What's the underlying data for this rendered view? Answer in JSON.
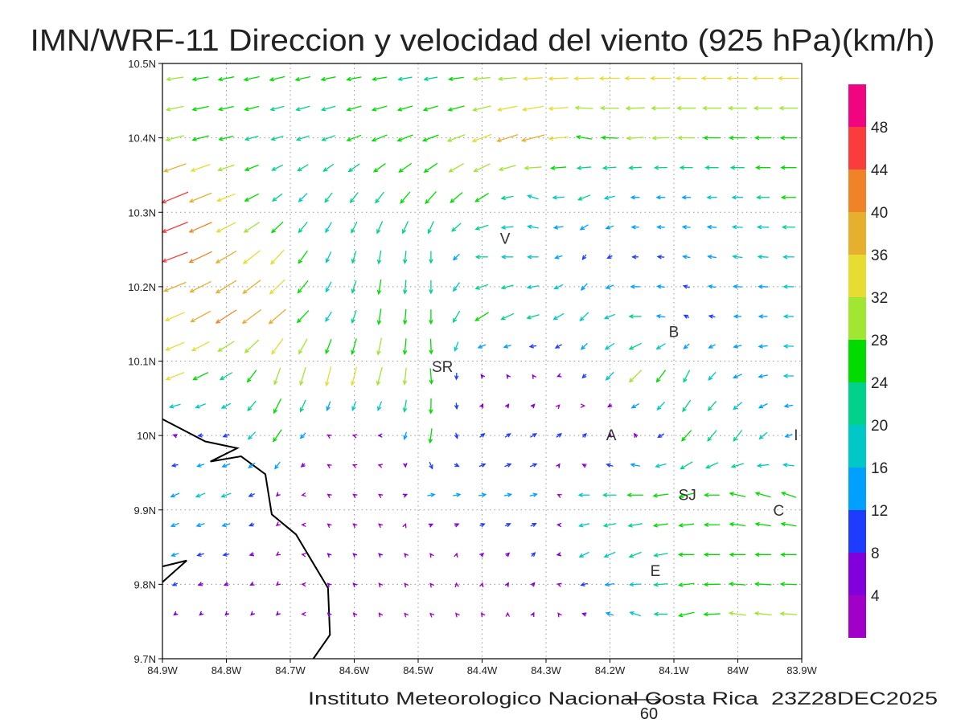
{
  "title": "IMN/WRF-11 Direccion y velocidad del viento (925 hPa)(km/h)",
  "footer": "Instituto Meteorologico Nacional Costa Rica  23Z28DEC2025",
  "reference_vector": {
    "label": "60",
    "value": 60
  },
  "chart_data": {
    "type": "vector-field",
    "units": "km/h",
    "level": "925 hPa",
    "xlim": [
      -84.9,
      -83.9
    ],
    "ylim": [
      9.7,
      10.5
    ],
    "x_ticks": [
      {
        "v": -84.9,
        "label": "84.9W"
      },
      {
        "v": -84.8,
        "label": "84.8W"
      },
      {
        "v": -84.7,
        "label": "84.7W"
      },
      {
        "v": -84.6,
        "label": "84.6W"
      },
      {
        "v": -84.5,
        "label": "84.5W"
      },
      {
        "v": -84.4,
        "label": "84.4W"
      },
      {
        "v": -84.3,
        "label": "84.3W"
      },
      {
        "v": -84.2,
        "label": "84.2W"
      },
      {
        "v": -84.1,
        "label": "84.1W"
      },
      {
        "v": -84.0,
        "label": "84W"
      },
      {
        "v": -83.9,
        "label": "83.9W"
      }
    ],
    "y_ticks": [
      {
        "v": 9.7,
        "label": "9.7N"
      },
      {
        "v": 9.8,
        "label": "9.8N"
      },
      {
        "v": 9.9,
        "label": "9.9N"
      },
      {
        "v": 10.0,
        "label": "10N"
      },
      {
        "v": 10.1,
        "label": "10.1N"
      },
      {
        "v": 10.2,
        "label": "10.2N"
      },
      {
        "v": 10.3,
        "label": "10.3N"
      },
      {
        "v": 10.4,
        "label": "10.4N"
      },
      {
        "v": 10.5,
        "label": "10.5N"
      }
    ],
    "grid": true,
    "legend": {
      "placement": "right",
      "labels": [
        "4",
        "8",
        "12",
        "16",
        "20",
        "24",
        "28",
        "32",
        "36",
        "40",
        "44",
        "48"
      ],
      "thresholds": [
        4,
        8,
        12,
        16,
        20,
        24,
        28,
        32,
        36,
        40,
        44,
        48
      ],
      "colors": [
        "#A000C8",
        "#8200DC",
        "#1E3CFF",
        "#00A0FF",
        "#00C8C8",
        "#00D28C",
        "#00DC00",
        "#A0E632",
        "#E6DC32",
        "#E6AF2D",
        "#F08228",
        "#FA3C3C",
        "#F0047F"
      ]
    },
    "grid_lons": [
      -84.88,
      -84.8,
      -84.72,
      -84.64,
      -84.56,
      -84.48,
      -84.4,
      -84.32,
      -84.24,
      -84.16,
      -84.08,
      -84.0,
      -83.92
    ],
    "grid_lats": [
      10.48,
      10.4,
      10.32,
      10.24,
      10.16,
      10.08,
      10.0,
      9.92,
      9.84,
      9.76
    ],
    "uv": [
      [
        [
          -28,
          -4
        ],
        [
          -26,
          -5
        ],
        [
          -25,
          -6
        ],
        [
          -24,
          -5
        ],
        [
          -24,
          -4
        ],
        [
          -22,
          -4
        ],
        [
          -28,
          -3
        ],
        [
          -32,
          -2
        ],
        [
          -33,
          -1
        ],
        [
          -34,
          0
        ],
        [
          -34,
          0
        ],
        [
          -34,
          0
        ],
        [
          -34,
          0
        ]
      ],
      [
        [
          -30,
          -8
        ],
        [
          -24,
          -6
        ],
        [
          -20,
          -6
        ],
        [
          -22,
          -8
        ],
        [
          -25,
          -10
        ],
        [
          -26,
          -10
        ],
        [
          -32,
          -12
        ],
        [
          -38,
          -10
        ],
        [
          -26,
          4
        ],
        [
          -28,
          -2
        ],
        [
          -28,
          0
        ],
        [
          -27,
          0
        ],
        [
          -27,
          0
        ]
      ],
      [
        [
          -44,
          -18
        ],
        [
          -30,
          -12
        ],
        [
          -16,
          -12
        ],
        [
          -12,
          -16
        ],
        [
          -14,
          -18
        ],
        [
          -18,
          -20
        ],
        [
          -22,
          -14
        ],
        [
          -18,
          6
        ],
        [
          -20,
          -8
        ],
        [
          -14,
          0
        ],
        [
          -14,
          0
        ],
        [
          -18,
          0
        ],
        [
          -24,
          0
        ]
      ],
      [
        [
          -42,
          -16
        ],
        [
          -34,
          -20
        ],
        [
          -22,
          -24
        ],
        [
          -8,
          -18
        ],
        [
          -4,
          -22
        ],
        [
          0,
          -20
        ],
        [
          -20,
          0
        ],
        [
          -18,
          0
        ],
        [
          -6,
          -8
        ],
        [
          -10,
          0
        ],
        [
          -12,
          2
        ],
        [
          -16,
          2
        ],
        [
          -18,
          0
        ]
      ],
      [
        [
          -32,
          -14
        ],
        [
          -34,
          -22
        ],
        [
          -28,
          -24
        ],
        [
          -10,
          -16
        ],
        [
          -4,
          -26
        ],
        [
          0,
          -24
        ],
        [
          -22,
          -14
        ],
        [
          -20,
          -6
        ],
        [
          -14,
          -14
        ],
        [
          -20,
          0
        ],
        [
          -8,
          4
        ],
        [
          -12,
          0
        ],
        [
          -16,
          0
        ]
      ],
      [
        [
          -30,
          -12
        ],
        [
          -20,
          -12
        ],
        [
          -10,
          -28
        ],
        [
          -8,
          -32
        ],
        [
          -8,
          -30
        ],
        [
          2,
          -26
        ],
        [
          -3,
          4
        ],
        [
          -2,
          3
        ],
        [
          -6,
          -6
        ],
        [
          -20,
          -20
        ],
        [
          -10,
          -20
        ],
        [
          -14,
          -6
        ],
        [
          -16,
          0
        ]
      ],
      [
        [
          -6,
          2
        ],
        [
          -10,
          -4
        ],
        [
          -14,
          -20
        ],
        [
          -3,
          2
        ],
        [
          -4,
          0
        ],
        [
          -3,
          -24
        ],
        [
          8,
          6
        ],
        [
          10,
          6
        ],
        [
          6,
          6
        ],
        [
          -4,
          6
        ],
        [
          -16,
          -18
        ],
        [
          -14,
          -18
        ],
        [
          -12,
          -4
        ]
      ],
      [
        [
          -14,
          -6
        ],
        [
          -16,
          -6
        ],
        [
          -3,
          -3
        ],
        [
          -3,
          2
        ],
        [
          -3,
          2
        ],
        [
          12,
          2
        ],
        [
          12,
          2
        ],
        [
          12,
          3
        ],
        [
          -18,
          0
        ],
        [
          -26,
          0
        ],
        [
          -24,
          -6
        ],
        [
          -26,
          6
        ],
        [
          -24,
          8
        ]
      ],
      [
        [
          -12,
          -4
        ],
        [
          -10,
          -2
        ],
        [
          -3,
          -2
        ],
        [
          -3,
          3
        ],
        [
          -3,
          3
        ],
        [
          -2,
          3
        ],
        [
          4,
          4
        ],
        [
          6,
          6
        ],
        [
          -16,
          -8
        ],
        [
          -20,
          -8
        ],
        [
          -26,
          0
        ],
        [
          -26,
          0
        ],
        [
          -26,
          0
        ]
      ],
      [
        [
          -4,
          -3
        ],
        [
          -3,
          -3
        ],
        [
          -3,
          -3
        ],
        [
          -3,
          3
        ],
        [
          -2,
          3
        ],
        [
          -2,
          2
        ],
        [
          -2,
          3
        ],
        [
          2,
          4
        ],
        [
          -6,
          2
        ],
        [
          -18,
          6
        ],
        [
          -26,
          -6
        ],
        [
          -28,
          4
        ],
        [
          -28,
          2
        ]
      ]
    ],
    "coastline": [
      [
        [
          -84.9,
          10.022
        ],
        [
          -84.833,
          9.992
        ],
        [
          -84.783,
          9.983
        ],
        [
          -84.825,
          9.965
        ],
        [
          -84.777,
          9.972
        ],
        [
          -84.739,
          9.948
        ],
        [
          -84.729,
          9.894
        ],
        [
          -84.691,
          9.867
        ],
        [
          -84.641,
          9.795
        ],
        [
          -84.638,
          9.732
        ],
        [
          -84.664,
          9.7
        ]
      ],
      [
        [
          -84.9,
          9.824
        ],
        [
          -84.862,
          9.832
        ],
        [
          -84.9,
          9.803
        ]
      ]
    ],
    "places": [
      {
        "label": "V",
        "lon": -84.364,
        "lat": 10.265
      },
      {
        "label": "SR",
        "lon": -84.462,
        "lat": 10.093
      },
      {
        "label": "B",
        "lon": -84.1,
        "lat": 10.14
      },
      {
        "label": "A",
        "lon": -84.198,
        "lat": 10.001
      },
      {
        "label": "I",
        "lon": -83.909,
        "lat": 10.001
      },
      {
        "label": "SJ",
        "lon": -84.079,
        "lat": 9.921
      },
      {
        "label": "C",
        "lon": -83.936,
        "lat": 9.9
      },
      {
        "label": "E",
        "lon": -84.129,
        "lat": 9.819
      }
    ]
  }
}
